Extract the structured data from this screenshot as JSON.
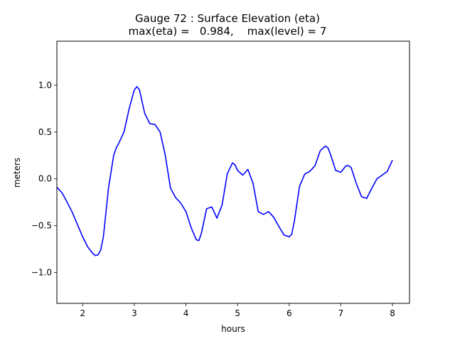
{
  "chart_data": {
    "type": "line",
    "title": "Gauge 72 : Surface Elevation (eta)",
    "subtitle": "max(eta) =   0.984,    max(level) = 7",
    "xlabel": "hours",
    "ylabel": "meters",
    "xlim": [
      1.5,
      8.33
    ],
    "ylim": [
      -1.33,
      1.47
    ],
    "xticks": [
      2,
      3,
      4,
      5,
      6,
      7,
      8
    ],
    "xtick_labels": [
      "2",
      "3",
      "4",
      "5",
      "6",
      "7",
      "8"
    ],
    "yticks": [
      -1.0,
      -0.5,
      0.0,
      0.5,
      1.0
    ],
    "ytick_labels": [
      "−1.0",
      "−0.5",
      "0.0",
      "0.5",
      "1.0"
    ],
    "grid": false,
    "series": [
      {
        "color": "#0000ff",
        "x": [
          1.5,
          1.6,
          1.7,
          1.8,
          1.9,
          2.0,
          2.1,
          2.2,
          2.25,
          2.3,
          2.35,
          2.4,
          2.5,
          2.6,
          2.65,
          2.7,
          2.8,
          2.9,
          3.0,
          3.05,
          3.1,
          3.2,
          3.3,
          3.4,
          3.5,
          3.6,
          3.7,
          3.8,
          3.9,
          4.0,
          4.1,
          4.2,
          4.25,
          4.3,
          4.4,
          4.5,
          4.6,
          4.7,
          4.8,
          4.9,
          4.95,
          5.0,
          5.1,
          5.2,
          5.3,
          5.4,
          5.5,
          5.6,
          5.7,
          5.8,
          5.9,
          6.0,
          6.05,
          6.1,
          6.2,
          6.3,
          6.4,
          6.5,
          6.6,
          6.7,
          6.75,
          6.8,
          6.9,
          7.0,
          7.1,
          7.15,
          7.2,
          7.3,
          7.4,
          7.5,
          7.6,
          7.7,
          7.8,
          7.9,
          8.0
        ],
        "y": [
          -0.09,
          -0.15,
          -0.25,
          -0.36,
          -0.49,
          -0.62,
          -0.73,
          -0.8,
          -0.82,
          -0.81,
          -0.76,
          -0.62,
          -0.1,
          0.25,
          0.33,
          0.38,
          0.5,
          0.75,
          0.95,
          0.984,
          0.95,
          0.7,
          0.59,
          0.58,
          0.5,
          0.25,
          -0.1,
          -0.2,
          -0.26,
          -0.35,
          -0.52,
          -0.65,
          -0.66,
          -0.58,
          -0.32,
          -0.3,
          -0.42,
          -0.28,
          0.05,
          0.17,
          0.15,
          0.09,
          0.04,
          0.1,
          -0.05,
          -0.35,
          -0.38,
          -0.35,
          -0.41,
          -0.51,
          -0.6,
          -0.62,
          -0.59,
          -0.45,
          -0.08,
          0.05,
          0.08,
          0.14,
          0.3,
          0.35,
          0.33,
          0.26,
          0.09,
          0.07,
          0.14,
          0.14,
          0.12,
          -0.05,
          -0.19,
          -0.21,
          -0.1,
          0.0,
          0.04,
          0.08,
          0.2
        ]
      }
    ]
  }
}
